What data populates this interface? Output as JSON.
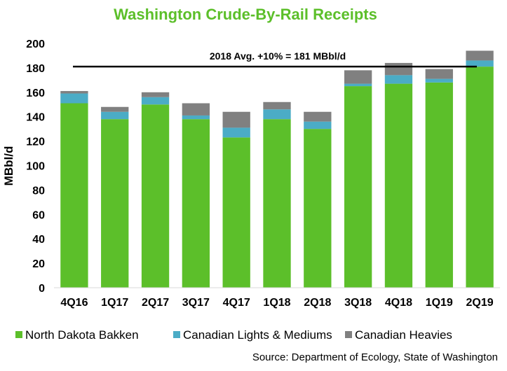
{
  "chart_data": {
    "type": "bar",
    "stacked": true,
    "title": "Washington Crude-By-Rail Receipts",
    "ylabel": "MBbl/d",
    "xlabel": "",
    "ylim": [
      0,
      200
    ],
    "yticks": [
      0,
      20,
      40,
      60,
      80,
      100,
      120,
      140,
      160,
      180,
      200
    ],
    "grid": false,
    "legend_position": "bottom",
    "categories": [
      "4Q16",
      "1Q17",
      "2Q17",
      "3Q17",
      "4Q17",
      "1Q18",
      "2Q18",
      "3Q18",
      "4Q18",
      "1Q19",
      "2Q19"
    ],
    "series": [
      {
        "name": "North Dakota Bakken",
        "color": "#5cbf2a",
        "values": [
          151,
          138,
          150,
          138,
          123,
          138,
          130,
          165,
          167,
          168,
          181
        ]
      },
      {
        "name": "Canadian Lights & Mediums",
        "color": "#4bacc6",
        "values": [
          8,
          6,
          6,
          3,
          8,
          8,
          6,
          2,
          7,
          3,
          5
        ]
      },
      {
        "name": "Canadian Heavies",
        "color": "#808080",
        "values": [
          2,
          4,
          4,
          10,
          13,
          6,
          8,
          11,
          10,
          8,
          8
        ]
      }
    ],
    "reference_line": {
      "value": 181,
      "label": "2018 Avg. +10% = 181 MBbl/d",
      "color": "#000000"
    },
    "source": "Source: Department of Ecology, State of Washington",
    "title_color": "#5cbf2a"
  }
}
